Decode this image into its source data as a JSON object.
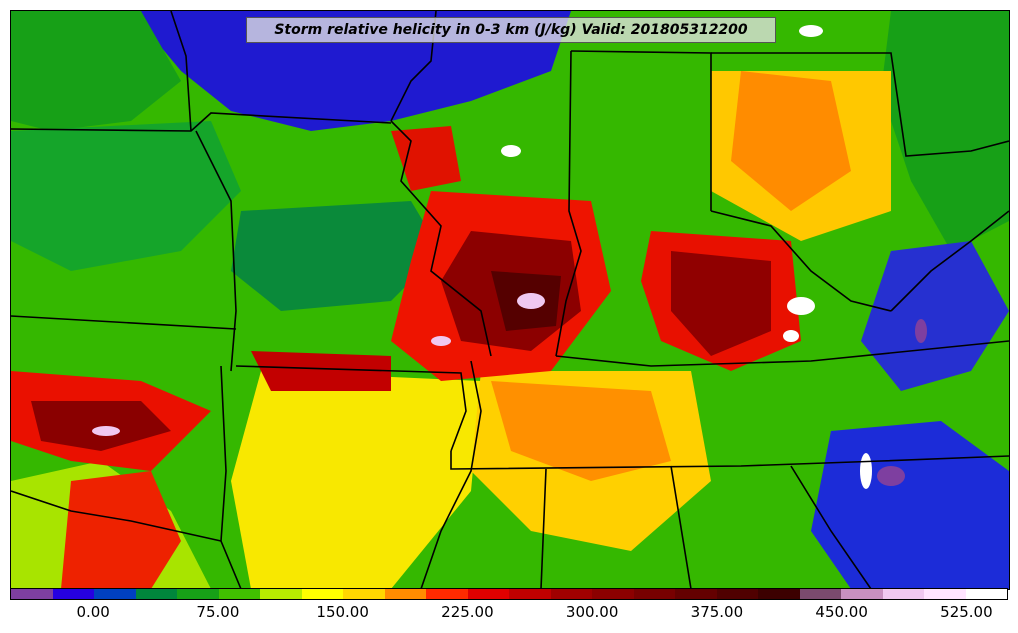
{
  "title": "Storm relative helicity in 0-3 km (J/kg) Valid: 201805312200",
  "colorbar": {
    "colors": [
      "#7e3fa0",
      "#2600e0",
      "#0040c0",
      "#00863c",
      "#17a017",
      "#41c000",
      "#b8ec00",
      "#ffff00",
      "#ffd700",
      "#ff8c00",
      "#ff2a00",
      "#e00000",
      "#c00000",
      "#a00000",
      "#8c0000",
      "#780000",
      "#640000",
      "#500000",
      "#3c0000",
      "#7b4a6e",
      "#c890c0",
      "#f0c8f0",
      "#ffe4ff",
      "#ffffff"
    ],
    "tick_labels": [
      "0.00",
      "75.00",
      "150.00",
      "225.00",
      "300.00",
      "375.00",
      "450.00",
      "525.00"
    ]
  }
}
